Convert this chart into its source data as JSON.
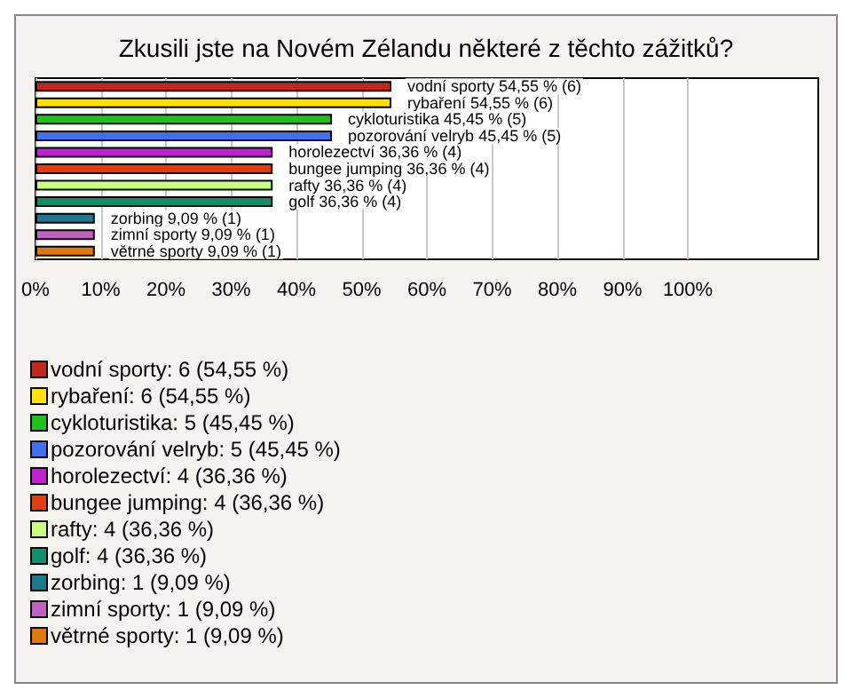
{
  "chart_data": {
    "type": "bar",
    "orientation": "horizontal",
    "stacked": true,
    "title": "Zkusili jste na Novém Zélandu některé z těchto zážitků?",
    "categories": [
      null,
      null,
      null,
      null,
      null,
      null,
      null,
      null,
      null,
      null,
      null
    ],
    "xlim": [
      0,
      120
    ],
    "xticks": [
      {
        "value": 0,
        "label": "0%"
      },
      {
        "value": 10,
        "label": "10%"
      },
      {
        "value": 20,
        "label": "20%"
      },
      {
        "value": 30,
        "label": "30%"
      },
      {
        "value": 40,
        "label": "40%"
      },
      {
        "value": 50,
        "label": "50%"
      },
      {
        "value": 60,
        "label": "60%"
      },
      {
        "value": 70,
        "label": "70%"
      },
      {
        "value": 80,
        "label": "80%"
      },
      {
        "value": 90,
        "label": "90%"
      },
      {
        "value": 100,
        "label": "100%"
      }
    ],
    "grid": "x",
    "legend": "bottom",
    "tick_labels": "x",
    "series": [
      {
        "name": "vodní sporty: 6 (54,55 %)",
        "color": "#c0281c",
        "values": [
          54.55,
          null,
          null,
          null,
          null,
          null,
          null,
          null,
          null,
          null,
          null
        ],
        "value_labels": [
          "vodní sporty 54,55 % (6)",
          null,
          null,
          null,
          null,
          null,
          null,
          null,
          null,
          null,
          null
        ]
      },
      {
        "name": "rybaření: 6 (54,55 %)",
        "color": "#ffe000",
        "values": [
          null,
          54.55,
          null,
          null,
          null,
          null,
          null,
          null,
          null,
          null,
          null
        ],
        "value_labels": [
          null,
          "rybaření 54,55 % (6)",
          null,
          null,
          null,
          null,
          null,
          null,
          null,
          null,
          null
        ]
      },
      {
        "name": "cykloturistika: 5 (45,45 %)",
        "color": "#20c020",
        "values": [
          null,
          null,
          45.45,
          null,
          null,
          null,
          null,
          null,
          null,
          null,
          null
        ],
        "value_labels": [
          null,
          null,
          "cykloturistika 45,45 % (5)",
          null,
          null,
          null,
          null,
          null,
          null,
          null,
          null
        ]
      },
      {
        "name": "pozorování velryb: 5 (45,45 %)",
        "color": "#4070f0",
        "values": [
          null,
          null,
          null,
          45.45,
          null,
          null,
          null,
          null,
          null,
          null,
          null
        ],
        "value_labels": [
          null,
          null,
          null,
          "pozorování velryb 45,45 % (5)",
          null,
          null,
          null,
          null,
          null,
          null,
          null
        ]
      },
      {
        "name": "horolezectví: 4 (36,36 %)",
        "color": "#c020d0",
        "values": [
          null,
          null,
          null,
          null,
          36.36,
          null,
          null,
          null,
          null,
          null,
          null
        ],
        "value_labels": [
          null,
          null,
          null,
          null,
          "horolezectví 36,36 % (4)",
          null,
          null,
          null,
          null,
          null,
          null
        ]
      },
      {
        "name": "bungee jumping: 4 (36,36 %)",
        "color": "#e04010",
        "values": [
          null,
          null,
          null,
          null,
          null,
          36.36,
          null,
          null,
          null,
          null,
          null
        ],
        "value_labels": [
          null,
          null,
          null,
          null,
          null,
          "bungee jumping 36,36 % (4)",
          null,
          null,
          null,
          null,
          null
        ]
      },
      {
        "name": "rafty: 4 (36,36 %)",
        "color": "#c8ff80",
        "values": [
          null,
          null,
          null,
          null,
          null,
          null,
          36.36,
          null,
          null,
          null,
          null
        ],
        "value_labels": [
          null,
          null,
          null,
          null,
          null,
          null,
          "rafty 36,36 % (4)",
          null,
          null,
          null,
          null
        ]
      },
      {
        "name": "golf: 4 (36,36 %)",
        "color": "#10906a",
        "values": [
          null,
          null,
          null,
          null,
          null,
          null,
          null,
          36.36,
          null,
          null,
          null
        ],
        "value_labels": [
          null,
          null,
          null,
          null,
          null,
          null,
          null,
          "golf 36,36 % (4)",
          null,
          null,
          null
        ]
      },
      {
        "name": "zorbing: 1 (9,09 %)",
        "color": "#207890",
        "values": [
          null,
          null,
          null,
          null,
          null,
          null,
          null,
          null,
          9.09,
          null,
          null
        ],
        "value_labels": [
          null,
          null,
          null,
          null,
          null,
          null,
          null,
          null,
          "zorbing 9,09 % (1)",
          null,
          null
        ]
      },
      {
        "name": "zimní sporty: 1 (9,09 %)",
        "color": "#c060c0",
        "values": [
          null,
          null,
          null,
          null,
          null,
          null,
          null,
          null,
          null,
          9.09,
          null
        ],
        "value_labels": [
          null,
          null,
          null,
          null,
          null,
          null,
          null,
          null,
          null,
          "zimní sporty 9,09 % (1)",
          null
        ]
      },
      {
        "name": "větrné sporty: 1 (9,09 %)",
        "color": "#e07810",
        "values": [
          null,
          null,
          null,
          null,
          null,
          null,
          null,
          null,
          null,
          null,
          9.09
        ],
        "value_labels": [
          null,
          null,
          null,
          null,
          null,
          null,
          null,
          null,
          null,
          null,
          "větrné sporty 9,09 % (1)"
        ]
      }
    ]
  }
}
